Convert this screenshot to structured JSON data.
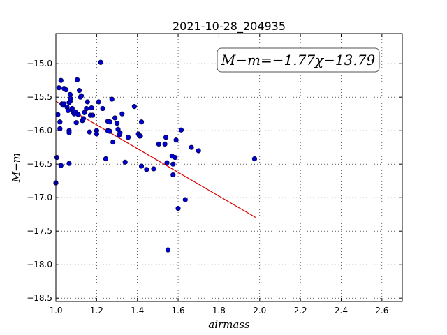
{
  "chart_data": {
    "type": "scatter",
    "title": "2021-10-28_204935",
    "xlabel": "airmass",
    "ylabel": "M−m",
    "xlim": [
      1.0,
      2.7
    ],
    "ylim": [
      -18.55,
      -14.55
    ],
    "x_ticks": [
      1.0,
      1.2,
      1.4,
      1.6,
      1.8,
      2.0,
      2.2,
      2.4,
      2.6
    ],
    "x_tick_labels": [
      "1.0",
      "1.2",
      "1.4",
      "1.6",
      "1.8",
      "2.0",
      "2.2",
      "2.4",
      "2.6"
    ],
    "y_ticks": [
      -15.0,
      -15.5,
      -16.0,
      -16.5,
      -17.0,
      -17.5,
      -18.0,
      -18.5
    ],
    "y_tick_labels": [
      "−15.0",
      "−15.5",
      "−16.0",
      "−16.5",
      "−17.0",
      "−17.5",
      "−18.0",
      "−18.5"
    ],
    "grid": true,
    "annotation": "M−m=−1.77χ−13.79",
    "point_color": "#0000cc",
    "fit_color": "#dd0000",
    "fit": {
      "slope": -1.77,
      "intercept": -13.79,
      "x_range": [
        1.0,
        1.98
      ]
    },
    "points": [
      [
        1.0,
        -16.78
      ],
      [
        1.005,
        -16.4
      ],
      [
        1.01,
        -15.76
      ],
      [
        1.015,
        -15.36
      ],
      [
        1.02,
        -15.87
      ],
      [
        1.02,
        -15.97
      ],
      [
        1.025,
        -16.52
      ],
      [
        1.025,
        -15.25
      ],
      [
        1.03,
        -15.6
      ],
      [
        1.035,
        -15.62
      ],
      [
        1.04,
        -15.6
      ],
      [
        1.04,
        -15.37
      ],
      [
        1.05,
        -15.39
      ],
      [
        1.055,
        -15.65
      ],
      [
        1.06,
        -15.7
      ],
      [
        1.065,
        -16.0
      ],
      [
        1.065,
        -16.03
      ],
      [
        1.065,
        -16.49
      ],
      [
        1.065,
        -15.58
      ],
      [
        1.07,
        -15.46
      ],
      [
        1.07,
        -15.56
      ],
      [
        1.072,
        -15.52
      ],
      [
        1.08,
        -15.67
      ],
      [
        1.085,
        -15.73
      ],
      [
        1.09,
        -15.75
      ],
      [
        1.095,
        -15.72
      ],
      [
        1.1,
        -15.88
      ],
      [
        1.105,
        -15.24
      ],
      [
        1.11,
        -15.76
      ],
      [
        1.115,
        -15.4
      ],
      [
        1.12,
        -15.5
      ],
      [
        1.125,
        -15.48
      ],
      [
        1.13,
        -15.85
      ],
      [
        1.135,
        -15.82
      ],
      [
        1.14,
        -15.73
      ],
      [
        1.15,
        -15.67
      ],
      [
        1.155,
        -15.57
      ],
      [
        1.165,
        -16.02
      ],
      [
        1.17,
        -15.77
      ],
      [
        1.175,
        -15.66
      ],
      [
        1.18,
        -15.77
      ],
      [
        1.2,
        -16.0
      ],
      [
        1.2,
        -16.05
      ],
      [
        1.21,
        -15.57
      ],
      [
        1.22,
        -14.98
      ],
      [
        1.23,
        -15.67
      ],
      [
        1.245,
        -16.42
      ],
      [
        1.255,
        -15.86
      ],
      [
        1.255,
        -16.0
      ],
      [
        1.265,
        -15.87
      ],
      [
        1.265,
        -16.01
      ],
      [
        1.275,
        -15.53
      ],
      [
        1.28,
        -16.17
      ],
      [
        1.29,
        -15.81
      ],
      [
        1.3,
        -15.89
      ],
      [
        1.305,
        -15.98
      ],
      [
        1.31,
        -16.07
      ],
      [
        1.315,
        -16.03
      ],
      [
        1.325,
        -15.75
      ],
      [
        1.34,
        -16.47
      ],
      [
        1.355,
        -16.1
      ],
      [
        1.385,
        -15.64
      ],
      [
        1.405,
        -16.05
      ],
      [
        1.41,
        -16.08
      ],
      [
        1.415,
        -16.08
      ],
      [
        1.42,
        -16.53
      ],
      [
        1.42,
        -15.87
      ],
      [
        1.445,
        -16.58
      ],
      [
        1.48,
        -16.57
      ],
      [
        1.505,
        -16.2
      ],
      [
        1.535,
        -16.2
      ],
      [
        1.54,
        -16.1
      ],
      [
        1.545,
        -16.48
      ],
      [
        1.55,
        -17.78
      ],
      [
        1.57,
        -16.38
      ],
      [
        1.575,
        -16.5
      ],
      [
        1.575,
        -16.66
      ],
      [
        1.585,
        -16.4
      ],
      [
        1.59,
        -16.14
      ],
      [
        1.6,
        -17.16
      ],
      [
        1.615,
        -15.99
      ],
      [
        1.635,
        -17.03
      ],
      [
        1.665,
        -16.25
      ],
      [
        1.7,
        -16.3
      ],
      [
        1.975,
        -16.42
      ]
    ]
  }
}
